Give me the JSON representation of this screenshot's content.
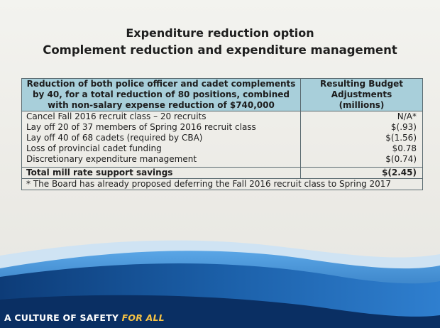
{
  "document": {
    "title": "Expenditure reduction option",
    "subtitle": "Complement reduction and expenditure management"
  },
  "table": {
    "header_left": "Reduction of both police officer and cadet complements by 40, for a total reduction of 80 positions, combined with non-salary expense reduction of $740,000",
    "header_left_lines": [
      "Reduction of  both police officer and cadet complements",
      "by 40, for a total reduction of  80 positions, combined",
      "with non-salary expense  reduction of $740,000"
    ],
    "header_right_lines": [
      "Resulting Budget",
      "Adjustments",
      "(millions)"
    ],
    "rows": [
      {
        "item": "Cancel Fall 2016 recruit class – 20 recruits",
        "value": "N/A*"
      },
      {
        "item": "Lay off 20 of 37 members of Spring 2016 recruit class",
        "value": "$(.93)"
      },
      {
        "item": "Lay off 40 of 68 cadets (required by CBA)",
        "value": "$(1.56)"
      },
      {
        "item": "Loss of provincial cadet funding",
        "value": "$0.78"
      },
      {
        "item": "Discretionary expenditure management",
        "value": "$(0.74)"
      }
    ],
    "total": {
      "label": "Total mill rate support savings",
      "value": "$(2.45)"
    },
    "footnote": "* The Board has already proposed deferring the Fall 2016 recruit class to Spring 2017"
  },
  "footer": {
    "slogan_main": "A CULTURE OF SAFETY ",
    "slogan_accent": "FOR ALL"
  },
  "colors": {
    "header_fill": "#a8cfda",
    "banner_blue": "#1b5fa8",
    "banner_dark": "#0d3c78",
    "accent_yellow": "#f6c244"
  }
}
